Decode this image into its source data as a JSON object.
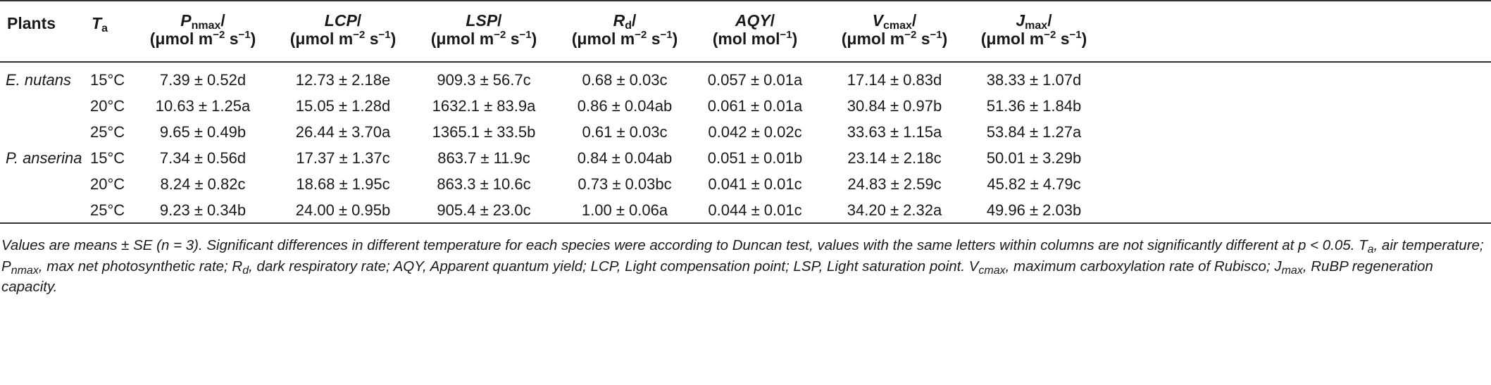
{
  "table": {
    "headers": {
      "plants": "Plants",
      "ta": "T",
      "ta_sub": "a",
      "pnmax": "P",
      "pnmax_sub": "nmax",
      "lcp": "LCP",
      "lsp": "LSP",
      "rd": "R",
      "rd_sub": "d",
      "aqy": "AQY",
      "vcmax": "V",
      "vcmax_sub": "cmax",
      "jmax": "J",
      "jmax_sub": "max",
      "slash": "/",
      "unit_umol": "(μmol m",
      "unit_exp_m": "−2",
      "unit_s": " s",
      "unit_exp_s": "−1",
      "unit_close": ")",
      "unit_mol": "(mol mol",
      "unit_mol_exp": "−1"
    },
    "rows": [
      {
        "plant": "E. nutans",
        "ta": "15°C",
        "pnmax": "7.39 ± 0.52d",
        "lcp": "12.73 ± 2.18e",
        "lsp": "909.3 ± 56.7c",
        "rd": "0.68 ± 0.03c",
        "aqy": "0.057 ± 0.01a",
        "vcmax": "17.14 ± 0.83d",
        "jmax": "38.33 ± 1.07d"
      },
      {
        "plant": "",
        "ta": "20°C",
        "pnmax": "10.63 ± 1.25a",
        "lcp": "15.05 ± 1.28d",
        "lsp": "1632.1 ± 83.9a",
        "rd": "0.86 ± 0.04ab",
        "aqy": "0.061 ± 0.01a",
        "vcmax": "30.84 ± 0.97b",
        "jmax": "51.36 ± 1.84b"
      },
      {
        "plant": "",
        "ta": "25°C",
        "pnmax": "9.65 ± 0.49b",
        "lcp": "26.44 ± 3.70a",
        "lsp": "1365.1 ± 33.5b",
        "rd": "0.61 ± 0.03c",
        "aqy": "0.042 ± 0.02c",
        "vcmax": "33.63 ± 1.15a",
        "jmax": "53.84 ± 1.27a"
      },
      {
        "plant": "P. anserina",
        "ta": "15°C",
        "pnmax": "7.34 ± 0.56d",
        "lcp": "17.37 ± 1.37c",
        "lsp": "863.7 ± 11.9c",
        "rd": "0.84 ± 0.04ab",
        "aqy": "0.051 ± 0.01b",
        "vcmax": "23.14 ± 2.18c",
        "jmax": "50.01 ± 3.29b"
      },
      {
        "plant": "",
        "ta": "20°C",
        "pnmax": "8.24 ± 0.82c",
        "lcp": "18.68 ± 1.95c",
        "lsp": "863.3 ± 10.6c",
        "rd": "0.73 ± 0.03bc",
        "aqy": "0.041 ± 0.01c",
        "vcmax": "24.83 ± 2.59c",
        "jmax": "45.82 ± 4.79c"
      },
      {
        "plant": "",
        "ta": "25°C",
        "pnmax": "9.23 ± 0.34b",
        "lcp": "24.00 ± 0.95b",
        "lsp": "905.4 ± 23.0c",
        "rd": "1.00 ± 0.06a",
        "aqy": "0.044 ± 0.01c",
        "vcmax": "34.20 ± 2.32a",
        "jmax": "49.96 ± 2.03b"
      }
    ]
  },
  "footnote": {
    "p1": "Values are means ± SE (n = 3). Significant differences in different temperature for each species were according to Duncan test, values with the same letters within columns are not significantly different at p < 0.05. T",
    "p1_sub": "a",
    "p2": ", air temperature; P",
    "p2_sub": "nmax",
    "p3": ", max net photosynthetic rate; R",
    "p3_sub": "d",
    "p4": ", dark respiratory rate; AQY, Apparent quantum yield; LCP, Light compensation point; LSP, Light saturation point. V",
    "p4_sub": "cmax",
    "p5": ", maximum carboxylation rate of Rubisco; J",
    "p5_sub": "max",
    "p6": ", RuBP regeneration capacity."
  }
}
